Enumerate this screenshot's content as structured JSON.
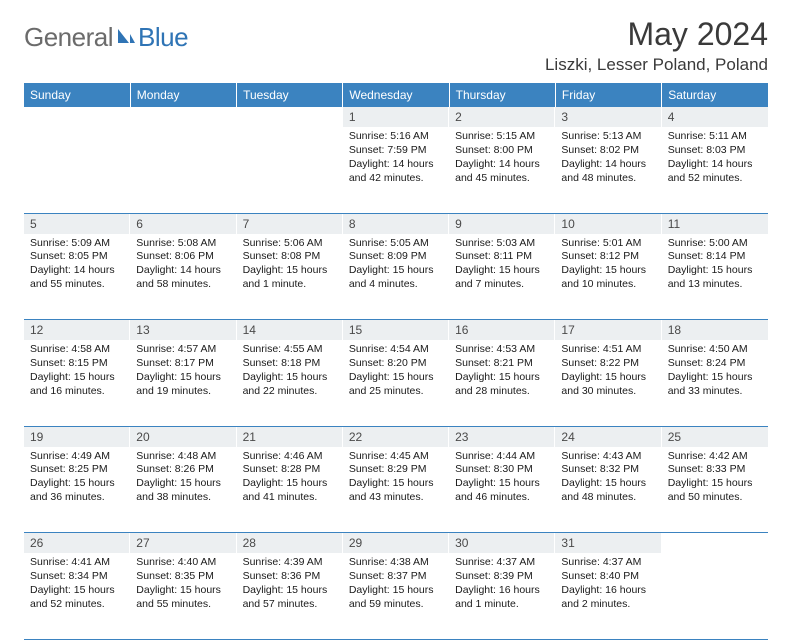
{
  "brand": {
    "word1": "General",
    "word2": "Blue",
    "word1_color": "#6b6b6b",
    "word2_color": "#2f74b5",
    "icon_color": "#2f74b5"
  },
  "title": "May 2024",
  "location": "Liszki, Lesser Poland, Poland",
  "header_row_bg": "#3b83c0",
  "header_row_fg": "#ffffff",
  "daynum_bg": "#eceff1",
  "divider_color": "#3b83c0",
  "weekdays": [
    "Sunday",
    "Monday",
    "Tuesday",
    "Wednesday",
    "Thursday",
    "Friday",
    "Saturday"
  ],
  "weeks": [
    [
      null,
      null,
      null,
      {
        "n": "1",
        "sunrise": "5:16 AM",
        "sunset": "7:59 PM",
        "daylight": "14 hours and 42 minutes."
      },
      {
        "n": "2",
        "sunrise": "5:15 AM",
        "sunset": "8:00 PM",
        "daylight": "14 hours and 45 minutes."
      },
      {
        "n": "3",
        "sunrise": "5:13 AM",
        "sunset": "8:02 PM",
        "daylight": "14 hours and 48 minutes."
      },
      {
        "n": "4",
        "sunrise": "5:11 AM",
        "sunset": "8:03 PM",
        "daylight": "14 hours and 52 minutes."
      }
    ],
    [
      {
        "n": "5",
        "sunrise": "5:09 AM",
        "sunset": "8:05 PM",
        "daylight": "14 hours and 55 minutes."
      },
      {
        "n": "6",
        "sunrise": "5:08 AM",
        "sunset": "8:06 PM",
        "daylight": "14 hours and 58 minutes."
      },
      {
        "n": "7",
        "sunrise": "5:06 AM",
        "sunset": "8:08 PM",
        "daylight": "15 hours and 1 minute."
      },
      {
        "n": "8",
        "sunrise": "5:05 AM",
        "sunset": "8:09 PM",
        "daylight": "15 hours and 4 minutes."
      },
      {
        "n": "9",
        "sunrise": "5:03 AM",
        "sunset": "8:11 PM",
        "daylight": "15 hours and 7 minutes."
      },
      {
        "n": "10",
        "sunrise": "5:01 AM",
        "sunset": "8:12 PM",
        "daylight": "15 hours and 10 minutes."
      },
      {
        "n": "11",
        "sunrise": "5:00 AM",
        "sunset": "8:14 PM",
        "daylight": "15 hours and 13 minutes."
      }
    ],
    [
      {
        "n": "12",
        "sunrise": "4:58 AM",
        "sunset": "8:15 PM",
        "daylight": "15 hours and 16 minutes."
      },
      {
        "n": "13",
        "sunrise": "4:57 AM",
        "sunset": "8:17 PM",
        "daylight": "15 hours and 19 minutes."
      },
      {
        "n": "14",
        "sunrise": "4:55 AM",
        "sunset": "8:18 PM",
        "daylight": "15 hours and 22 minutes."
      },
      {
        "n": "15",
        "sunrise": "4:54 AM",
        "sunset": "8:20 PM",
        "daylight": "15 hours and 25 minutes."
      },
      {
        "n": "16",
        "sunrise": "4:53 AM",
        "sunset": "8:21 PM",
        "daylight": "15 hours and 28 minutes."
      },
      {
        "n": "17",
        "sunrise": "4:51 AM",
        "sunset": "8:22 PM",
        "daylight": "15 hours and 30 minutes."
      },
      {
        "n": "18",
        "sunrise": "4:50 AM",
        "sunset": "8:24 PM",
        "daylight": "15 hours and 33 minutes."
      }
    ],
    [
      {
        "n": "19",
        "sunrise": "4:49 AM",
        "sunset": "8:25 PM",
        "daylight": "15 hours and 36 minutes."
      },
      {
        "n": "20",
        "sunrise": "4:48 AM",
        "sunset": "8:26 PM",
        "daylight": "15 hours and 38 minutes."
      },
      {
        "n": "21",
        "sunrise": "4:46 AM",
        "sunset": "8:28 PM",
        "daylight": "15 hours and 41 minutes."
      },
      {
        "n": "22",
        "sunrise": "4:45 AM",
        "sunset": "8:29 PM",
        "daylight": "15 hours and 43 minutes."
      },
      {
        "n": "23",
        "sunrise": "4:44 AM",
        "sunset": "8:30 PM",
        "daylight": "15 hours and 46 minutes."
      },
      {
        "n": "24",
        "sunrise": "4:43 AM",
        "sunset": "8:32 PM",
        "daylight": "15 hours and 48 minutes."
      },
      {
        "n": "25",
        "sunrise": "4:42 AM",
        "sunset": "8:33 PM",
        "daylight": "15 hours and 50 minutes."
      }
    ],
    [
      {
        "n": "26",
        "sunrise": "4:41 AM",
        "sunset": "8:34 PM",
        "daylight": "15 hours and 52 minutes."
      },
      {
        "n": "27",
        "sunrise": "4:40 AM",
        "sunset": "8:35 PM",
        "daylight": "15 hours and 55 minutes."
      },
      {
        "n": "28",
        "sunrise": "4:39 AM",
        "sunset": "8:36 PM",
        "daylight": "15 hours and 57 minutes."
      },
      {
        "n": "29",
        "sunrise": "4:38 AM",
        "sunset": "8:37 PM",
        "daylight": "15 hours and 59 minutes."
      },
      {
        "n": "30",
        "sunrise": "4:37 AM",
        "sunset": "8:39 PM",
        "daylight": "16 hours and 1 minute."
      },
      {
        "n": "31",
        "sunrise": "4:37 AM",
        "sunset": "8:40 PM",
        "daylight": "16 hours and 2 minutes."
      },
      null
    ]
  ],
  "labels": {
    "sunrise": "Sunrise:",
    "sunset": "Sunset:",
    "daylight": "Daylight:"
  },
  "fonts": {
    "title_size": 32,
    "location_size": 17,
    "weekday_size": 12,
    "daynum_size": 12,
    "cell_size": 10.5
  }
}
